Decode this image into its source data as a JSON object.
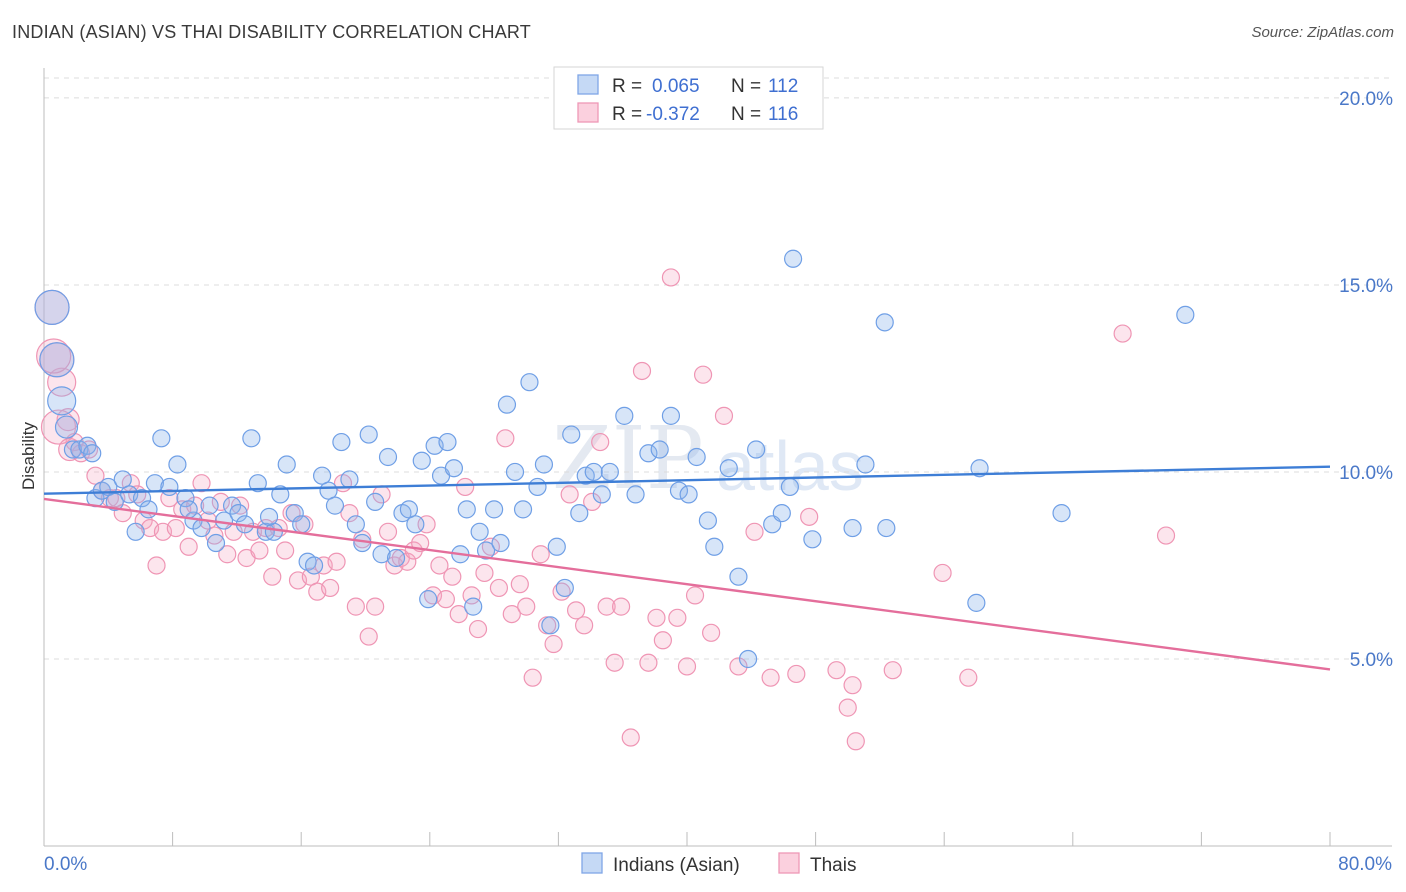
{
  "header": {
    "title": "INDIAN (ASIAN) VS THAI DISABILITY CORRELATION CHART",
    "source": "Source: ZipAtlas.com"
  },
  "watermark": {
    "zip": "ZIP",
    "atlas": "atlas"
  },
  "legend": {
    "rows": [
      {
        "r_label": "R =",
        "r_value": "0.065",
        "n_label": "N =",
        "n_value": "112"
      },
      {
        "r_label": "R =",
        "r_value": "-0.372",
        "n_label": "N =",
        "n_value": "116"
      }
    ]
  },
  "bottom_legend": {
    "items": [
      {
        "label": "Indians (Asian)"
      },
      {
        "label": "Thais"
      }
    ]
  },
  "chart_data": {
    "type": "scatter",
    "title": "INDIAN (ASIAN) VS THAI DISABILITY CORRELATION CHART",
    "xlabel": "",
    "ylabel": "Disability",
    "xlim": [
      0,
      80
    ],
    "ylim": [
      0,
      20.8
    ],
    "x_tick_labels": [
      "0.0%",
      "80.0%"
    ],
    "y_ticks": [
      5,
      10,
      15,
      20
    ],
    "y_tick_labels": [
      "5.0%",
      "10.0%",
      "15.0%",
      "20.0%"
    ],
    "grid": true,
    "legend_position": "top-center",
    "colors": {
      "Indians (Asian)": "#6fa0e8",
      "Thais": "#f08fb0",
      "Indians_line": "#3e7ed6",
      "Thais_line": "#e46e9b",
      "axis_text": "#4a78c8"
    },
    "series": [
      {
        "name": "Indians (Asian)",
        "r": 0.065,
        "n": 112,
        "trend": {
          "x": [
            0,
            80
          ],
          "y": [
            9.42,
            10.14
          ]
        },
        "points": [
          [
            0.5,
            14.4
          ],
          [
            0.8,
            13.0
          ],
          [
            1.1,
            11.9
          ],
          [
            1.4,
            11.2
          ],
          [
            1.8,
            10.6
          ],
          [
            2.2,
            10.6
          ],
          [
            2.7,
            10.7
          ],
          [
            3.2,
            9.3
          ],
          [
            3.6,
            9.5
          ],
          [
            4.0,
            9.6
          ],
          [
            4.4,
            9.2
          ],
          [
            4.9,
            9.8
          ],
          [
            5.3,
            9.4
          ],
          [
            5.7,
            8.4
          ],
          [
            6.1,
            9.3
          ],
          [
            6.5,
            9.0
          ],
          [
            6.9,
            9.7
          ],
          [
            7.3,
            10.9
          ],
          [
            7.8,
            9.6
          ],
          [
            8.3,
            10.2
          ],
          [
            8.8,
            9.3
          ],
          [
            9.3,
            8.7
          ],
          [
            9.8,
            8.5
          ],
          [
            10.3,
            9.1
          ],
          [
            10.7,
            8.1
          ],
          [
            11.2,
            8.7
          ],
          [
            11.7,
            9.1
          ],
          [
            12.1,
            8.9
          ],
          [
            12.5,
            8.6
          ],
          [
            12.9,
            10.9
          ],
          [
            13.3,
            9.7
          ],
          [
            13.8,
            8.4
          ],
          [
            14.3,
            8.4
          ],
          [
            14.7,
            9.4
          ],
          [
            15.1,
            10.2
          ],
          [
            15.6,
            8.9
          ],
          [
            16.0,
            8.6
          ],
          [
            16.4,
            7.6
          ],
          [
            16.8,
            7.5
          ],
          [
            17.3,
            9.9
          ],
          [
            17.7,
            9.5
          ],
          [
            18.1,
            9.1
          ],
          [
            18.5,
            10.8
          ],
          [
            19.0,
            9.8
          ],
          [
            19.4,
            8.6
          ],
          [
            19.8,
            8.1
          ],
          [
            20.2,
            11.0
          ],
          [
            20.6,
            9.2
          ],
          [
            21.0,
            7.8
          ],
          [
            21.4,
            10.4
          ],
          [
            21.9,
            7.7
          ],
          [
            22.3,
            8.9
          ],
          [
            22.7,
            9.0
          ],
          [
            23.1,
            8.6
          ],
          [
            23.5,
            10.3
          ],
          [
            23.9,
            6.6
          ],
          [
            24.3,
            10.7
          ],
          [
            24.7,
            9.9
          ],
          [
            25.1,
            10.8
          ],
          [
            25.5,
            10.1
          ],
          [
            25.9,
            7.8
          ],
          [
            26.3,
            9.0
          ],
          [
            26.7,
            6.4
          ],
          [
            27.1,
            8.4
          ],
          [
            27.5,
            7.9
          ],
          [
            28.0,
            9.0
          ],
          [
            28.4,
            8.1
          ],
          [
            28.8,
            11.8
          ],
          [
            29.3,
            10.0
          ],
          [
            29.8,
            9.0
          ],
          [
            30.2,
            12.4
          ],
          [
            30.7,
            9.6
          ],
          [
            31.1,
            10.2
          ],
          [
            31.5,
            5.9
          ],
          [
            31.9,
            8.0
          ],
          [
            32.4,
            6.9
          ],
          [
            32.8,
            11.0
          ],
          [
            33.3,
            8.9
          ],
          [
            33.7,
            9.9
          ],
          [
            34.2,
            10.0
          ],
          [
            34.7,
            9.4
          ],
          [
            35.2,
            10.0
          ],
          [
            36.1,
            11.5
          ],
          [
            36.8,
            9.4
          ],
          [
            37.6,
            10.5
          ],
          [
            38.3,
            10.6
          ],
          [
            39.0,
            11.5
          ],
          [
            39.5,
            9.5
          ],
          [
            40.1,
            9.4
          ],
          [
            40.6,
            10.4
          ],
          [
            41.3,
            8.7
          ],
          [
            41.7,
            8.0
          ],
          [
            42.6,
            10.1
          ],
          [
            43.2,
            7.2
          ],
          [
            43.8,
            5.0
          ],
          [
            44.3,
            10.6
          ],
          [
            45.3,
            8.6
          ],
          [
            45.9,
            8.9
          ],
          [
            46.4,
            9.6
          ],
          [
            46.6,
            15.7
          ],
          [
            47.8,
            8.2
          ],
          [
            50.3,
            8.5
          ],
          [
            51.1,
            10.2
          ],
          [
            52.3,
            14.0
          ],
          [
            52.4,
            8.5
          ],
          [
            58.0,
            6.5
          ],
          [
            58.2,
            10.1
          ],
          [
            63.3,
            8.9
          ],
          [
            71.0,
            14.2
          ],
          [
            3.0,
            10.5
          ],
          [
            9.0,
            9.0
          ],
          [
            14.0,
            8.8
          ]
        ]
      },
      {
        "name": "Thais",
        "r": -0.372,
        "n": 116,
        "trend": {
          "x": [
            0,
            80
          ],
          "y": [
            9.28,
            4.72
          ]
        },
        "points": [
          [
            0.5,
            14.4
          ],
          [
            0.8,
            13.0
          ],
          [
            1.1,
            12.4
          ],
          [
            1.5,
            11.4
          ],
          [
            1.9,
            10.8
          ],
          [
            2.3,
            10.5
          ],
          [
            2.8,
            10.6
          ],
          [
            3.2,
            9.9
          ],
          [
            3.6,
            9.5
          ],
          [
            4.1,
            9.3
          ],
          [
            4.5,
            9.3
          ],
          [
            4.9,
            8.9
          ],
          [
            5.4,
            9.7
          ],
          [
            5.8,
            9.4
          ],
          [
            6.2,
            8.7
          ],
          [
            6.6,
            8.5
          ],
          [
            7.0,
            7.5
          ],
          [
            7.4,
            8.4
          ],
          [
            7.8,
            9.3
          ],
          [
            8.2,
            8.5
          ],
          [
            8.6,
            9.0
          ],
          [
            9.0,
            8.0
          ],
          [
            9.4,
            9.1
          ],
          [
            9.8,
            9.7
          ],
          [
            10.2,
            8.7
          ],
          [
            10.6,
            8.3
          ],
          [
            11.0,
            9.2
          ],
          [
            11.4,
            7.8
          ],
          [
            11.8,
            8.4
          ],
          [
            12.2,
            9.1
          ],
          [
            12.6,
            7.7
          ],
          [
            13.0,
            8.4
          ],
          [
            13.4,
            7.9
          ],
          [
            13.8,
            8.5
          ],
          [
            14.2,
            7.2
          ],
          [
            14.6,
            8.5
          ],
          [
            15.0,
            7.9
          ],
          [
            15.4,
            8.9
          ],
          [
            15.8,
            7.1
          ],
          [
            16.2,
            8.6
          ],
          [
            16.6,
            7.2
          ],
          [
            17.0,
            6.8
          ],
          [
            17.4,
            7.5
          ],
          [
            17.8,
            6.9
          ],
          [
            18.2,
            7.6
          ],
          [
            18.6,
            9.7
          ],
          [
            19.0,
            8.9
          ],
          [
            19.4,
            6.4
          ],
          [
            19.8,
            8.2
          ],
          [
            20.2,
            5.6
          ],
          [
            20.6,
            6.4
          ],
          [
            21.0,
            9.4
          ],
          [
            21.4,
            8.4
          ],
          [
            21.8,
            7.5
          ],
          [
            22.2,
            7.7
          ],
          [
            22.6,
            7.6
          ],
          [
            23.0,
            7.9
          ],
          [
            23.4,
            8.1
          ],
          [
            23.8,
            8.6
          ],
          [
            24.2,
            6.7
          ],
          [
            24.6,
            7.5
          ],
          [
            25.0,
            6.6
          ],
          [
            25.4,
            7.2
          ],
          [
            25.8,
            6.2
          ],
          [
            26.2,
            9.6
          ],
          [
            26.6,
            6.7
          ],
          [
            27.0,
            5.8
          ],
          [
            27.4,
            7.3
          ],
          [
            27.8,
            8.0
          ],
          [
            28.3,
            6.9
          ],
          [
            28.7,
            10.9
          ],
          [
            29.1,
            6.2
          ],
          [
            29.6,
            7.0
          ],
          [
            30.0,
            6.4
          ],
          [
            30.4,
            4.5
          ],
          [
            30.9,
            7.8
          ],
          [
            31.3,
            5.9
          ],
          [
            31.7,
            5.4
          ],
          [
            32.2,
            6.8
          ],
          [
            32.7,
            9.4
          ],
          [
            33.1,
            6.3
          ],
          [
            33.6,
            5.9
          ],
          [
            34.1,
            9.2
          ],
          [
            34.6,
            10.8
          ],
          [
            35.0,
            6.4
          ],
          [
            35.5,
            4.9
          ],
          [
            35.9,
            6.4
          ],
          [
            36.5,
            2.9
          ],
          [
            37.2,
            12.7
          ],
          [
            37.6,
            4.9
          ],
          [
            38.1,
            6.1
          ],
          [
            38.5,
            5.5
          ],
          [
            39.0,
            15.2
          ],
          [
            39.4,
            6.1
          ],
          [
            40.0,
            4.8
          ],
          [
            40.5,
            6.7
          ],
          [
            41.0,
            12.6
          ],
          [
            41.5,
            5.7
          ],
          [
            42.3,
            11.5
          ],
          [
            43.2,
            4.8
          ],
          [
            44.2,
            8.4
          ],
          [
            45.2,
            4.5
          ],
          [
            46.8,
            4.6
          ],
          [
            47.6,
            8.8
          ],
          [
            49.3,
            4.7
          ],
          [
            50.0,
            3.7
          ],
          [
            50.3,
            4.3
          ],
          [
            50.5,
            2.8
          ],
          [
            52.8,
            4.7
          ],
          [
            55.9,
            7.3
          ],
          [
            57.5,
            4.5
          ],
          [
            67.1,
            13.7
          ],
          [
            69.8,
            8.3
          ],
          [
            0.6,
            13.1
          ],
          [
            0.9,
            11.2
          ],
          [
            1.6,
            10.6
          ]
        ]
      }
    ]
  }
}
